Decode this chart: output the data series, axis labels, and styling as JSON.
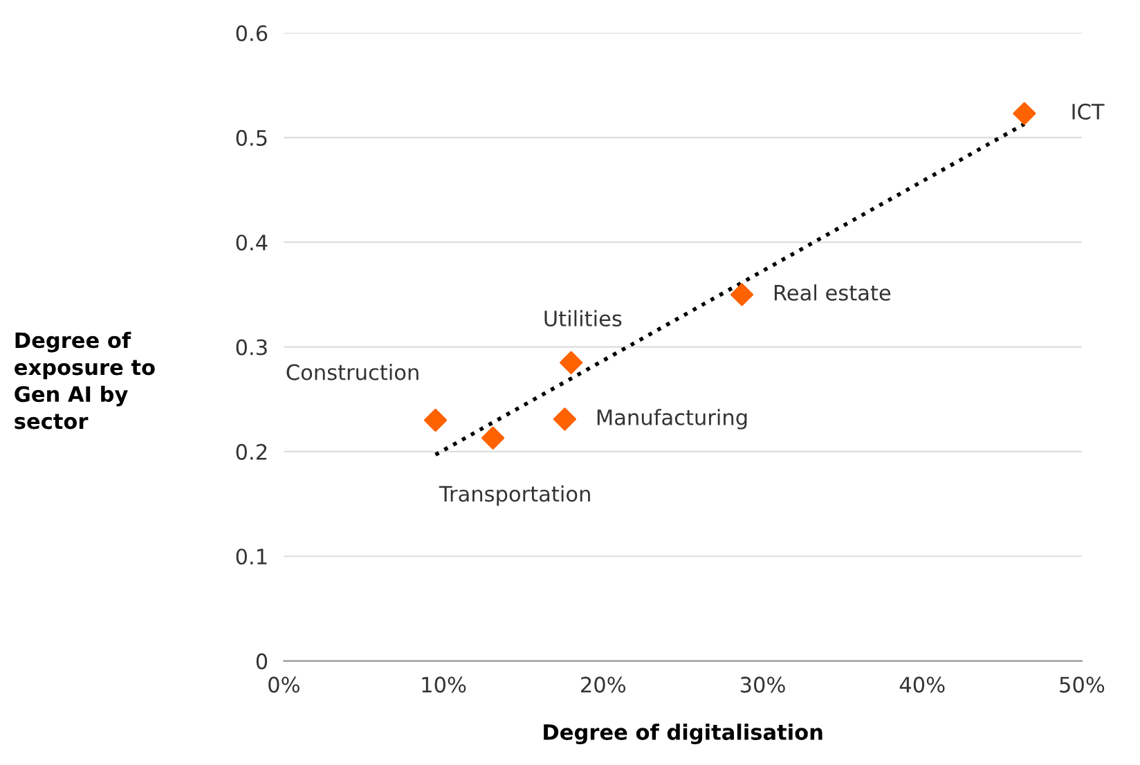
{
  "chart_data": {
    "type": "scatter",
    "xlabel": "Degree of digitalisation",
    "ylabel": "Degree of\nexposure to\nGen AI by\nsector",
    "x": [
      9.5,
      13.1,
      17.6,
      18.0,
      28.7,
      46.4
    ],
    "series": [
      {
        "color": "#ff6200",
        "marker": "diamond",
        "values": [
          0.23,
          0.213,
          0.231,
          0.285,
          0.35,
          0.523
        ]
      },
      {
        "type": "line",
        "color": "#000000",
        "line_style": "dotted",
        "marker": "none",
        "x": [
          9.5,
          46.4
        ],
        "values": [
          0.197,
          0.513
        ]
      }
    ],
    "annotations": [
      {
        "text": "Construction",
        "x": 9.5,
        "y": 0.23
      },
      {
        "text": "Transportation",
        "x": 13.1,
        "y": 0.213
      },
      {
        "text": "Manufacturing",
        "x": 17.6,
        "y": 0.231
      },
      {
        "text": "Utilities",
        "x": 18.0,
        "y": 0.285
      },
      {
        "text": "Real estate",
        "x": 28.7,
        "y": 0.35
      },
      {
        "text": "ICT",
        "x": 46.4,
        "y": 0.523
      }
    ],
    "xlim": [
      0,
      50
    ],
    "xticks": [
      {
        "value": 0,
        "label": "0%"
      },
      {
        "value": 10,
        "label": "10%"
      },
      {
        "value": 20,
        "label": "20%"
      },
      {
        "value": 30,
        "label": "30%"
      },
      {
        "value": 40,
        "label": "40%"
      },
      {
        "value": 50,
        "label": "50%"
      }
    ],
    "ylim": [
      0,
      0.6
    ],
    "yticks": [
      0,
      0.1,
      0.2,
      0.3,
      0.4,
      0.5,
      0.6
    ],
    "grid": "y"
  }
}
